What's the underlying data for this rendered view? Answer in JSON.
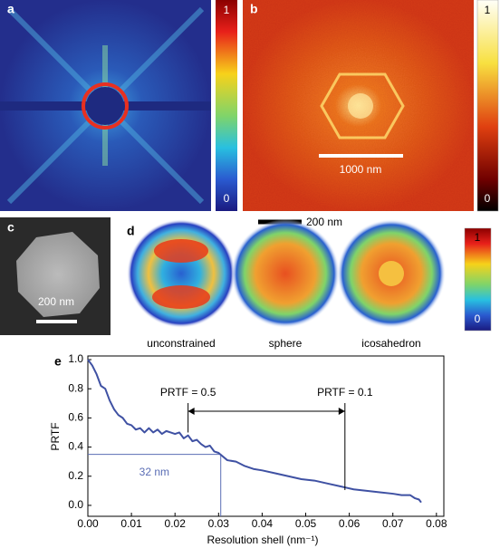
{
  "panels": {
    "a": {
      "label": "a",
      "colorbar": {
        "max": 1,
        "min": 0
      }
    },
    "b": {
      "label": "b",
      "colorbar": {
        "max": 1,
        "min": 0
      },
      "scale_bar": "1000 nm"
    },
    "c": {
      "label": "c",
      "scale_bar": "200 nm"
    },
    "d": {
      "label": "d",
      "scale_bar": "200 nm",
      "colorbar": {
        "max": 1,
        "min": 0
      },
      "reconstructions": [
        "unconstrained",
        "sphere",
        "icosahedron"
      ]
    }
  },
  "chart_data": {
    "type": "line",
    "label": "e",
    "x_label": "Resolution shell (nm⁻¹)",
    "y_label": "PRTF",
    "xlim": [
      0,
      0.0817
    ],
    "ylim": [
      -0.075,
      1.025
    ],
    "xticks": [
      {
        "value": 0,
        "label": "0.00"
      },
      {
        "value": 0.01,
        "label": "0.01"
      },
      {
        "value": 0.02,
        "label": "0.02"
      },
      {
        "value": 0.03,
        "label": "0.03"
      },
      {
        "value": 0.04,
        "label": "0.04"
      },
      {
        "value": 0.05,
        "label": "0.05"
      },
      {
        "value": 0.06,
        "label": "0.06"
      },
      {
        "value": 0.07,
        "label": "0.07"
      },
      {
        "value": 0.08,
        "label": "0.08"
      }
    ],
    "yticks": [
      {
        "value": 0,
        "label": "0.0"
      },
      {
        "value": 0.2,
        "label": "0.2"
      },
      {
        "value": 0.4,
        "label": "0.4"
      },
      {
        "value": 0.6,
        "label": "0.6"
      },
      {
        "value": 0.8,
        "label": "0.8"
      },
      {
        "value": 1,
        "label": "1.0"
      }
    ],
    "series": [
      {
        "color": "#3f51a3",
        "x": [
          0,
          0.001,
          0.002,
          0.003,
          0.004,
          0.005,
          0.006,
          0.007,
          0.008,
          0.009,
          0.01,
          0.011,
          0.012,
          0.013,
          0.014,
          0.015,
          0.016,
          0.017,
          0.018,
          0.019,
          0.02,
          0.021,
          0.022,
          0.023,
          0.024,
          0.025,
          0.026,
          0.027,
          0.028,
          0.029,
          0.03,
          0.032,
          0.034,
          0.036,
          0.038,
          0.04,
          0.043,
          0.046,
          0.049,
          0.052,
          0.055,
          0.058,
          0.061,
          0.064,
          0.067,
          0.07,
          0.072,
          0.074,
          0.075,
          0.076,
          0.0765
        ],
        "values": [
          1.0,
          0.96,
          0.9,
          0.82,
          0.8,
          0.72,
          0.66,
          0.62,
          0.6,
          0.56,
          0.55,
          0.52,
          0.53,
          0.5,
          0.53,
          0.5,
          0.52,
          0.49,
          0.51,
          0.5,
          0.49,
          0.5,
          0.46,
          0.48,
          0.44,
          0.45,
          0.42,
          0.4,
          0.41,
          0.37,
          0.36,
          0.31,
          0.3,
          0.27,
          0.25,
          0.24,
          0.22,
          0.2,
          0.18,
          0.17,
          0.15,
          0.13,
          0.11,
          0.1,
          0.09,
          0.08,
          0.07,
          0.07,
          0.05,
          0.04,
          0.02
        ]
      }
    ],
    "annotations": [
      {
        "text": "PRTF = 0.5",
        "x": 0.023,
        "y": 0.5
      },
      {
        "text": "PRTF = 0.1",
        "x": 0.059,
        "y": 0.105
      }
    ],
    "cutoff": {
      "text": "32 nm",
      "x": 0.0305,
      "y": 0.35,
      "color": "#5a6db5"
    }
  }
}
